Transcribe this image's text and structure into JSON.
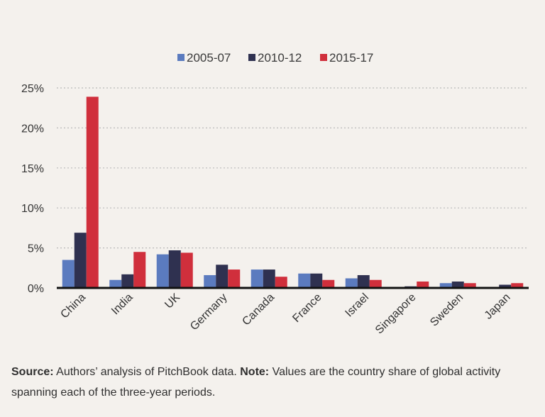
{
  "chart_data": {
    "type": "bar",
    "categories": [
      "China",
      "India",
      "UK",
      "Germany",
      "Canada",
      "France",
      "Israel",
      "Singapore",
      "Sweden",
      "Japan"
    ],
    "series": [
      {
        "name": "2005-07",
        "color": "#5b7bbf",
        "values": [
          3.5,
          1.0,
          4.2,
          1.6,
          2.3,
          1.8,
          1.2,
          0.0,
          0.6,
          0.0
        ]
      },
      {
        "name": "2010-12",
        "color": "#2f3150",
        "values": [
          6.9,
          1.7,
          4.7,
          2.9,
          2.3,
          1.8,
          1.6,
          0.2,
          0.8,
          0.4
        ]
      },
      {
        "name": "2015-17",
        "color": "#d02f3c",
        "values": [
          23.9,
          4.5,
          4.4,
          2.3,
          1.4,
          1.0,
          1.0,
          0.8,
          0.6,
          0.6
        ]
      }
    ],
    "y_tick_labels": [
      "0%",
      "5%",
      "10%",
      "15%",
      "20%",
      "25%"
    ],
    "y_tick_values": [
      0,
      5,
      10,
      15,
      20,
      25
    ],
    "ylim": [
      0,
      25
    ],
    "grid": true,
    "legend_position": "top-center",
    "title": "",
    "xlabel": "",
    "ylabel": ""
  },
  "caption": {
    "source_label": "Source:",
    "source_text": " Authors’ analysis of PitchBook data.  ",
    "note_label": "Note:",
    "note_text": " Values are the country share of global activity spanning each of the three-year periods."
  }
}
